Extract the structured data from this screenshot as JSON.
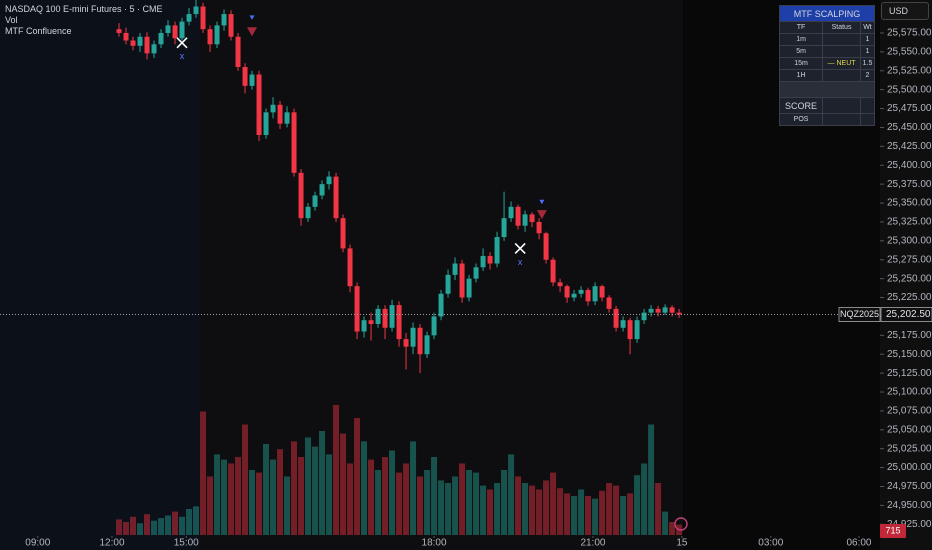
{
  "header": {
    "symbol": "NASDAQ 100 E-mini Futures · 5 · CME",
    "indicators": [
      "Vol",
      "MTF Confluence"
    ],
    "currency": "USD"
  },
  "indicator_table": {
    "title": "MTF SCALPING",
    "columns": [
      "TF",
      "Status",
      "Wt"
    ],
    "rows": [
      {
        "tf": "1m",
        "wt": "1"
      },
      {
        "tf": "5m",
        "wt": "1"
      },
      {
        "tf": "15m",
        "status": "— NEUT",
        "wt": "1.5"
      },
      {
        "tf": "1H",
        "wt": "2"
      }
    ],
    "score_label": "SCORE",
    "pos_label": "POS"
  },
  "chart_data": {
    "type": "candlestick",
    "up_color": "#26a69a",
    "down_color": "#f23645",
    "xlim": [
      0,
      125.7
    ],
    "ylim": [
      24891,
      25618.6
    ],
    "volume_lim": [
      0,
      150
    ],
    "xticks": [
      {
        "value": 5.4,
        "label": "09:00"
      },
      {
        "value": 16,
        "label": "12:00"
      },
      {
        "value": 26.6,
        "label": "15:00"
      },
      {
        "value": 62,
        "label": "18:00"
      },
      {
        "value": 84.7,
        "label": "21:00"
      },
      {
        "value": 97.4,
        "label": "15"
      },
      {
        "value": 110.1,
        "label": "03:00"
      },
      {
        "value": 122.7,
        "label": "06:00"
      }
    ],
    "yticks": [
      {
        "value": 24925,
        "label": "24,925.00"
      },
      {
        "value": 24950,
        "label": "24,950.00"
      },
      {
        "value": 24975,
        "label": "24,975.00"
      },
      {
        "value": 25000,
        "label": "25,000.00"
      },
      {
        "value": 25025,
        "label": "25,025.00"
      },
      {
        "value": 25050,
        "label": "25,050.00"
      },
      {
        "value": 25075,
        "label": "25,075.00"
      },
      {
        "value": 25100,
        "label": "25,100.00"
      },
      {
        "value": 25125,
        "label": "25,125.00"
      },
      {
        "value": 25150,
        "label": "25,150.00"
      },
      {
        "value": 25175,
        "label": "25,175.00"
      },
      {
        "value": 25200,
        "label": "25,200.00"
      },
      {
        "value": 25225,
        "label": "25,225.00"
      },
      {
        "value": 25250,
        "label": "25,250.00"
      },
      {
        "value": 25275,
        "label": "25,275.00"
      },
      {
        "value": 25300,
        "label": "25,300.00"
      },
      {
        "value": 25325,
        "label": "25,325.00"
      },
      {
        "value": 25350,
        "label": "25,350.00"
      },
      {
        "value": 25375,
        "label": "25,375.00"
      },
      {
        "value": 25400,
        "label": "25,400.00"
      },
      {
        "value": 25425,
        "label": "25,425.00"
      },
      {
        "value": 25450,
        "label": "25,450.00"
      },
      {
        "value": 25475,
        "label": "25,475.00"
      },
      {
        "value": 25500,
        "label": "25,500.00"
      },
      {
        "value": 25525,
        "label": "25,525.00"
      },
      {
        "value": 25550,
        "label": "25,550.00"
      },
      {
        "value": 25575,
        "label": "25,575.00"
      }
    ],
    "x": [
      17,
      18,
      19,
      20,
      21,
      22,
      23,
      24,
      25,
      26,
      27,
      28,
      29,
      30,
      31,
      32,
      33,
      34,
      35,
      36,
      37,
      38,
      39,
      40,
      41,
      42,
      43,
      44,
      45,
      46,
      47,
      48,
      49,
      50,
      51,
      52,
      53,
      54,
      55,
      56,
      57,
      58,
      59,
      60,
      61,
      62,
      63,
      64,
      65,
      66,
      67,
      68,
      69,
      70,
      71,
      72,
      73,
      74,
      75,
      76,
      77,
      78,
      79,
      80,
      81,
      82,
      83,
      84,
      85,
      86,
      87,
      88,
      89,
      90,
      91,
      92,
      93,
      94,
      95,
      96,
      97
    ],
    "open": [
      25580,
      25575,
      25565,
      25558,
      25570,
      25548,
      25560,
      25575,
      25585,
      25568,
      25590,
      25600,
      25610,
      25580,
      25560,
      25585,
      25600,
      25570,
      25530,
      25505,
      25520,
      25440,
      25470,
      25480,
      25455,
      25470,
      25390,
      25330,
      25345,
      25360,
      25375,
      25385,
      25330,
      25290,
      25240,
      25180,
      25195,
      25190,
      25210,
      25185,
      25215,
      25170,
      25160,
      25185,
      25150,
      25175,
      25200,
      25230,
      25255,
      25270,
      25225,
      25250,
      25265,
      25280,
      25270,
      25305,
      25330,
      25345,
      25320,
      25335,
      25325,
      25310,
      25275,
      25245,
      25240,
      25225,
      25230,
      25235,
      25220,
      25240,
      25225,
      25210,
      25185,
      25195,
      25170,
      25195,
      25205,
      25210,
      25205,
      25212,
      25205
    ],
    "high": [
      25588,
      25582,
      25570,
      25575,
      25576,
      25565,
      25580,
      25592,
      25590,
      25595,
      25608,
      25622,
      25615,
      25585,
      25590,
      25606,
      25605,
      25575,
      25535,
      25525,
      25525,
      25475,
      25490,
      25485,
      25478,
      25475,
      25395,
      25350,
      25365,
      25380,
      25392,
      25390,
      25335,
      25295,
      25245,
      25200,
      25205,
      25215,
      25215,
      25222,
      25220,
      25178,
      25192,
      25190,
      25180,
      25205,
      25235,
      25262,
      25278,
      25275,
      25255,
      25270,
      25290,
      25285,
      25312,
      25365,
      25352,
      25348,
      25340,
      25338,
      25330,
      25312,
      25278,
      25250,
      25242,
      25235,
      25240,
      25238,
      25245,
      25242,
      25228,
      25214,
      25200,
      25198,
      25200,
      25210,
      25215,
      25214,
      25216,
      25215,
      25210
    ],
    "low": [
      25570,
      25560,
      25552,
      25550,
      25540,
      25542,
      25555,
      25570,
      25560,
      25565,
      25585,
      25595,
      25575,
      25550,
      25555,
      25578,
      25565,
      25525,
      25495,
      25500,
      25432,
      25435,
      25462,
      25448,
      25450,
      25385,
      25320,
      25325,
      25340,
      25355,
      25368,
      25325,
      25285,
      25232,
      25170,
      25172,
      25168,
      25185,
      25170,
      25180,
      25160,
      25130,
      25150,
      25125,
      25145,
      25170,
      25195,
      25225,
      25248,
      25218,
      25220,
      25245,
      25260,
      25262,
      25265,
      25300,
      25325,
      25315,
      25312,
      25318,
      25302,
      25270,
      25240,
      25232,
      25218,
      25220,
      25225,
      25214,
      25215,
      25220,
      25205,
      25180,
      25180,
      25150,
      25165,
      25190,
      25200,
      25200,
      25202,
      25200,
      25198
    ],
    "close": [
      25575,
      25565,
      25558,
      25570,
      25548,
      25560,
      25575,
      25585,
      25568,
      25590,
      25600,
      25610,
      25580,
      25560,
      25585,
      25600,
      25570,
      25530,
      25505,
      25520,
      25440,
      25470,
      25480,
      25455,
      25470,
      25390,
      25330,
      25345,
      25360,
      25375,
      25385,
      25330,
      25290,
      25240,
      25180,
      25195,
      25190,
      25210,
      25185,
      25215,
      25170,
      25160,
      25185,
      25150,
      25175,
      25200,
      25230,
      25255,
      25270,
      25225,
      25250,
      25265,
      25280,
      25270,
      25305,
      25330,
      25345,
      25320,
      25335,
      25325,
      25310,
      25275,
      25245,
      25240,
      25225,
      25230,
      25235,
      25220,
      25240,
      25225,
      25210,
      25185,
      25195,
      25170,
      25195,
      25205,
      25210,
      25205,
      25212,
      25205,
      25202.5
    ],
    "volume": [
      12,
      10,
      14,
      9,
      16,
      11,
      13,
      15,
      18,
      14,
      20,
      22,
      95,
      45,
      62,
      58,
      55,
      60,
      85,
      50,
      48,
      70,
      58,
      66,
      45,
      72,
      60,
      75,
      68,
      80,
      62,
      100,
      78,
      55,
      90,
      72,
      58,
      50,
      60,
      65,
      48,
      55,
      72,
      45,
      50,
      60,
      42,
      40,
      45,
      55,
      50,
      48,
      38,
      35,
      40,
      50,
      62,
      45,
      40,
      38,
      35,
      42,
      48,
      36,
      32,
      30,
      35,
      30,
      28,
      34,
      40,
      38,
      30,
      32,
      46,
      55,
      85,
      40,
      18,
      10,
      8
    ],
    "signals": [
      {
        "kind": "cross",
        "x": 26,
        "price": 25562,
        "label": "x"
      },
      {
        "kind": "sell",
        "x": 36,
        "price": 25576
      },
      {
        "kind": "arrow",
        "x": 36,
        "price": 25595
      },
      {
        "kind": "cross",
        "x": 74.3,
        "price": 25290,
        "label": "x"
      },
      {
        "kind": "sell",
        "x": 77.4,
        "price": 25334
      },
      {
        "kind": "arrow",
        "x": 77.4,
        "price": 25351
      }
    ],
    "last_price": 25202.5,
    "last_price_label": "25,202.50",
    "symbol_tag": "NQZ2025",
    "countdown": "715"
  }
}
